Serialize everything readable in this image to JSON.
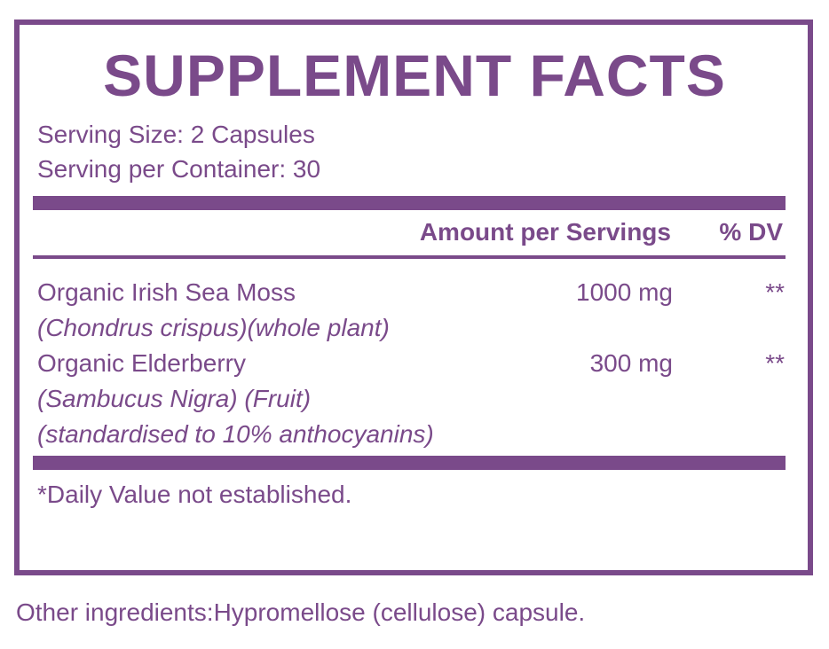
{
  "title": "SUPPLEMENT FACTS",
  "serving_size": "Serving Size: 2 Capsules",
  "servings_per_container": "Serving per Container: 30",
  "header": {
    "amount": "Amount per Servings",
    "dv": "% DV"
  },
  "ingredients": [
    {
      "name": "Organic Irish Sea Moss",
      "details": [
        "(Chondrus crispus)(whole plant)"
      ],
      "amount": "1000 mg",
      "dv": "**"
    },
    {
      "name": "Organic Elderberry",
      "details": [
        "(Sambucus Nigra) (Fruit)",
        "(standardised to 10% anthocyanins)"
      ],
      "amount": "300 mg",
      "dv": "**"
    }
  ],
  "footnote": "*Daily Value not established.",
  "other_ingredients": "Other ingredients:Hypromellose (cellulose) capsule.",
  "colors": {
    "brand": "#7a4a8a"
  }
}
